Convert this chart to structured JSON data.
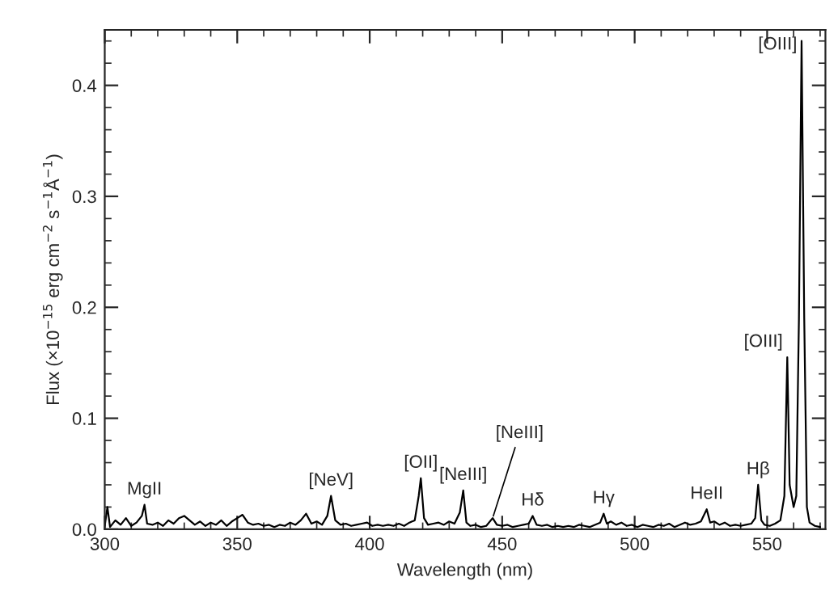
{
  "chart_data": {
    "type": "line",
    "xlabel": "Wavelength (nm)",
    "ylabel": "Flux (×10$^{−15}$ erg cm$^{−2}$ s$^{−1}$Å$^{−1}$)",
    "xlim": [
      300,
      572
    ],
    "ylim": [
      0,
      0.45
    ],
    "xticks": [
      300,
      350,
      400,
      450,
      500,
      550
    ],
    "yticks": [
      {
        "value": 0,
        "label": "0.0"
      },
      0.1,
      0.2,
      0.3,
      0.4
    ],
    "grid": false,
    "legend": false,
    "marker": "none",
    "line_style": "solid",
    "series": [
      {
        "color": "#000000",
        "x": [
          300,
          301,
          302,
          304,
          306,
          308,
          310,
          312,
          314,
          315,
          316,
          318,
          320,
          322,
          324,
          326,
          328,
          330,
          332,
          334,
          336,
          338,
          340,
          342,
          344,
          346,
          348,
          350,
          352,
          354,
          356,
          358,
          360,
          362,
          364,
          366,
          368,
          370,
          372,
          374,
          376,
          378,
          380,
          382,
          384,
          385.4,
          387,
          389,
          391,
          393,
          395,
          397,
          399,
          401,
          403,
          405,
          407,
          409,
          411,
          413,
          415,
          417,
          418.5,
          419.3,
          420.5,
          422,
          424,
          426,
          428,
          430,
          432,
          434,
          435.3,
          436.5,
          438,
          440,
          442,
          444,
          446.4,
          448,
          450,
          452,
          454,
          456,
          458,
          460,
          461.5,
          463,
          465,
          467,
          469,
          471,
          473,
          475,
          477,
          479,
          481,
          483,
          485,
          487,
          488.3,
          489.5,
          491,
          493,
          495,
          497,
          499,
          501,
          503,
          505,
          507,
          509,
          511,
          513,
          515,
          517,
          519,
          521,
          523,
          525,
          527.2,
          528.5,
          530,
          532,
          534,
          536,
          538,
          540,
          542,
          544,
          545.5,
          546.6,
          547.8,
          549,
          551,
          553,
          555,
          556.5,
          557.6,
          558.5,
          560,
          561,
          562,
          563,
          564,
          565,
          566,
          568,
          570
        ],
        "values": [
          0.003,
          0.02,
          0.002,
          0.008,
          0.004,
          0.01,
          0.003,
          0.006,
          0.012,
          0.022,
          0.005,
          0.004,
          0.006,
          0.003,
          0.008,
          0.005,
          0.01,
          0.012,
          0.008,
          0.004,
          0.007,
          0.003,
          0.006,
          0.004,
          0.008,
          0.003,
          0.007,
          0.01,
          0.013,
          0.006,
          0.004,
          0.005,
          0.003,
          0.004,
          0.002,
          0.004,
          0.003,
          0.006,
          0.004,
          0.008,
          0.014,
          0.005,
          0.007,
          0.004,
          0.012,
          0.03,
          0.008,
          0.004,
          0.005,
          0.003,
          0.004,
          0.005,
          0.006,
          0.003,
          0.004,
          0.003,
          0.004,
          0.003,
          0.005,
          0.003,
          0.006,
          0.008,
          0.03,
          0.046,
          0.01,
          0.004,
          0.005,
          0.006,
          0.004,
          0.007,
          0.005,
          0.015,
          0.035,
          0.006,
          0.003,
          0.004,
          0.002,
          0.003,
          0.01,
          0.004,
          0.003,
          0.004,
          0.002,
          0.003,
          0.004,
          0.005,
          0.012,
          0.004,
          0.003,
          0.004,
          0.002,
          0.003,
          0.002,
          0.003,
          0.002,
          0.004,
          0.003,
          0.002,
          0.004,
          0.006,
          0.014,
          0.005,
          0.007,
          0.004,
          0.006,
          0.003,
          0.004,
          0.002,
          0.004,
          0.003,
          0.002,
          0.004,
          0.003,
          0.005,
          0.002,
          0.004,
          0.006,
          0.004,
          0.005,
          0.007,
          0.018,
          0.006,
          0.007,
          0.004,
          0.006,
          0.003,
          0.004,
          0.003,
          0.004,
          0.005,
          0.01,
          0.04,
          0.008,
          0.004,
          0.003,
          0.005,
          0.008,
          0.03,
          0.155,
          0.04,
          0.02,
          0.03,
          0.19,
          0.44,
          0.19,
          0.02,
          0.006,
          0.003,
          0.002
        ]
      }
    ],
    "annotations": [
      {
        "text": "MgII",
        "x": 315,
        "y": 0.022
      },
      {
        "text": "[NeV]",
        "x": 385.4,
        "y": 0.03
      },
      {
        "text": "[OII]",
        "x": 419.3,
        "y": 0.046
      },
      {
        "text": "[NeIII]",
        "x": 435.3,
        "y": 0.035
      },
      {
        "text": "[NeIII]",
        "x": 446.4,
        "y": 0.01
      },
      {
        "text": "Hδ",
        "x": 461.5,
        "y": 0.012
      },
      {
        "text": "Hγ",
        "x": 488.3,
        "y": 0.014
      },
      {
        "text": "HeII",
        "x": 527.2,
        "y": 0.018
      },
      {
        "text": "Hβ",
        "x": 546.6,
        "y": 0.04
      },
      {
        "text": "[OIII]",
        "x": 557.6,
        "y": 0.155
      },
      {
        "text": "[OIII]",
        "x": 563,
        "y": 0.44
      }
    ]
  }
}
